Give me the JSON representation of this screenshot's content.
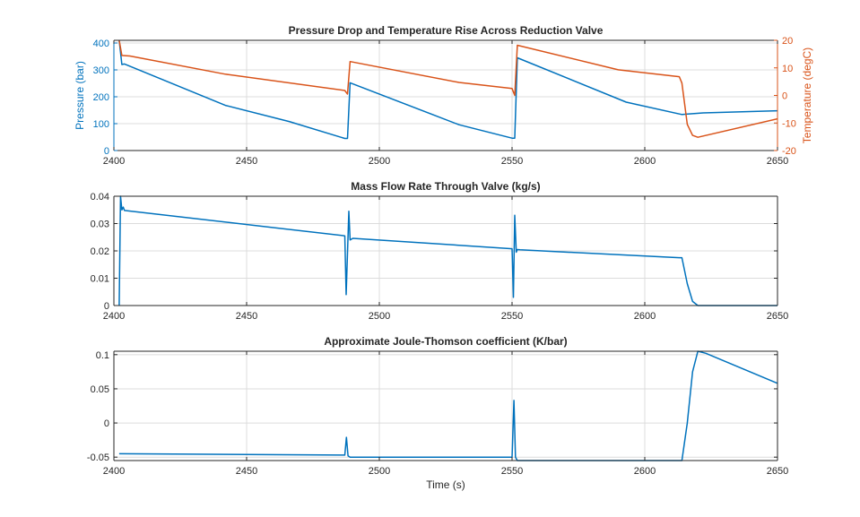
{
  "colors": {
    "blue": "#0072BD",
    "orange": "#D95319",
    "grid": "#dcdcdc",
    "axis": "#262626"
  },
  "chart_data": [
    {
      "type": "line",
      "title": "Pressure Drop and Temperature Rise Across Reduction Valve",
      "xlabel": "",
      "xlim": [
        2400,
        2650
      ],
      "xticks": [
        2400,
        2450,
        2500,
        2550,
        2600,
        2650
      ],
      "grid": true,
      "axes": {
        "left": {
          "label": "Pressure (bar)",
          "ylim": [
            0,
            410
          ],
          "yticks": [
            0,
            100,
            200,
            300,
            400
          ],
          "color": "#0072BD"
        },
        "right": {
          "label": "Temperature (degC)",
          "ylim": [
            -20,
            20
          ],
          "yticks": [
            -20,
            -10,
            0,
            10,
            20
          ],
          "color": "#D95319"
        }
      },
      "series": [
        {
          "name": "Pressure",
          "axis": "left",
          "x": [
            2402,
            2403,
            2404,
            2442,
            2466,
            2487,
            2488,
            2489,
            2530,
            2550,
            2551,
            2552,
            2593,
            2614,
            2622,
            2650
          ],
          "y": [
            410,
            320,
            322,
            168,
            108,
            45,
            45,
            252,
            96,
            46,
            46,
            345,
            180,
            134,
            140,
            148
          ]
        },
        {
          "name": "Temperature",
          "axis": "right",
          "x": [
            2402,
            2403,
            2406,
            2442,
            2487,
            2488,
            2489,
            2530,
            2550,
            2551,
            2552,
            2590,
            2613,
            2614,
            2616,
            2618,
            2620,
            2650
          ],
          "y": [
            20,
            14.5,
            14.3,
            7.7,
            1.8,
            0.5,
            12.3,
            4.7,
            2.5,
            0,
            18.2,
            9.3,
            6.8,
            4.5,
            -10.5,
            -14.5,
            -15.2,
            -8.5
          ]
        }
      ]
    },
    {
      "type": "line",
      "title": "Mass Flow Rate Through Valve (kg/s)",
      "xlabel": "",
      "xlim": [
        2400,
        2650
      ],
      "xticks": [
        2400,
        2450,
        2500,
        2550,
        2600,
        2650
      ],
      "ylim": [
        0,
        0.04
      ],
      "yticks": [
        0,
        0.01,
        0.02,
        0.03,
        0.04
      ],
      "grid": true,
      "series": [
        {
          "name": "Mass flow rate",
          "x": [
            2402,
            2402.5,
            2403,
            2403.5,
            2404,
            2487,
            2487.5,
            2488.5,
            2489,
            2490,
            2550,
            2550.5,
            2551,
            2551.6,
            2552,
            2553,
            2613,
            2614,
            2616,
            2618,
            2620,
            2650
          ],
          "y": [
            0,
            0.04,
            0.035,
            0.036,
            0.0348,
            0.0255,
            0.004,
            0.0345,
            0.024,
            0.0246,
            0.0208,
            0.003,
            0.033,
            0.0195,
            0.0205,
            0.0204,
            0.0175,
            0.0175,
            0.008,
            0.0015,
            0,
            0
          ]
        }
      ]
    },
    {
      "type": "line",
      "title": "Approximate Joule-Thomson coefficient (K/bar)",
      "xlabel": "Time (s)",
      "xlim": [
        2400,
        2650
      ],
      "xticks": [
        2400,
        2450,
        2500,
        2550,
        2600,
        2650
      ],
      "ylim": [
        -0.055,
        0.105
      ],
      "yticks": [
        -0.05,
        0,
        0.05,
        0.1
      ],
      "grid": true,
      "series": [
        {
          "name": "JT coefficient",
          "x": [
            2402,
            2487,
            2487.6,
            2488.2,
            2489,
            2550,
            2550.7,
            2551.3,
            2552,
            2614,
            2616,
            2618,
            2620,
            2623,
            2650
          ],
          "y": [
            -0.045,
            -0.047,
            -0.021,
            -0.048,
            -0.05,
            -0.05,
            0.033,
            -0.05,
            -0.055,
            -0.055,
            0.0,
            0.075,
            0.105,
            0.102,
            0.058
          ]
        }
      ]
    }
  ]
}
